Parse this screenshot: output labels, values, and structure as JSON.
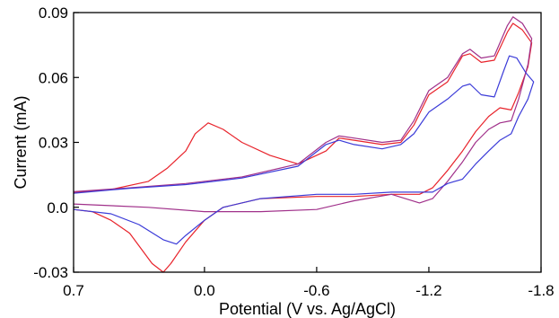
{
  "chart_data": {
    "type": "line",
    "title": "",
    "xlabel": "Potential (V vs. Ag/AgCl)",
    "ylabel": "Current (mA)",
    "xlim": [
      0.7,
      -1.8
    ],
    "ylim": [
      -0.03,
      0.09
    ],
    "x_reversed": true,
    "x_ticks": [
      {
        "value": 0.7,
        "label": "0.7"
      },
      {
        "value": 0.0,
        "label": "0.0"
      },
      {
        "value": -0.6,
        "label": "-0.6"
      },
      {
        "value": -1.2,
        "label": "-1.2"
      },
      {
        "value": -1.8,
        "label": "-1.8"
      }
    ],
    "y_ticks": [
      {
        "value": -0.03,
        "label": "-0.03"
      },
      {
        "value": 0.0,
        "label": "0.0"
      },
      {
        "value": 0.03,
        "label": "0.03"
      },
      {
        "value": 0.06,
        "label": "0.06"
      },
      {
        "value": 0.09,
        "label": "0.09"
      }
    ],
    "grid": false,
    "legend": "none",
    "series": [
      {
        "color": "#e8232b",
        "points": [
          [
            0.7,
            0.0068
          ],
          [
            0.5,
            0.0082
          ],
          [
            0.3,
            0.012
          ],
          [
            0.2,
            0.018
          ],
          [
            0.1,
            0.026
          ],
          [
            0.05,
            0.034
          ],
          [
            -0.02,
            0.039
          ],
          [
            -0.1,
            0.036
          ],
          [
            -0.2,
            0.03
          ],
          [
            -0.35,
            0.024
          ],
          [
            -0.5,
            0.02
          ],
          [
            -0.65,
            0.026
          ],
          [
            -0.72,
            0.032
          ],
          [
            -0.8,
            0.031
          ],
          [
            -0.95,
            0.029
          ],
          [
            -1.05,
            0.03
          ],
          [
            -1.12,
            0.038
          ],
          [
            -1.2,
            0.052
          ],
          [
            -1.3,
            0.058
          ],
          [
            -1.38,
            0.07
          ],
          [
            -1.42,
            0.071
          ],
          [
            -1.48,
            0.067
          ],
          [
            -1.55,
            0.068
          ],
          [
            -1.62,
            0.081
          ],
          [
            -1.65,
            0.085
          ],
          [
            -1.7,
            0.082
          ],
          [
            -1.75,
            0.076
          ],
          [
            -1.73,
            0.065
          ],
          [
            -1.68,
            0.053
          ],
          [
            -1.64,
            0.045
          ],
          [
            -1.58,
            0.046
          ],
          [
            -1.52,
            0.042
          ],
          [
            -1.45,
            0.035
          ],
          [
            -1.38,
            0.026
          ],
          [
            -1.3,
            0.017
          ],
          [
            -1.22,
            0.009
          ],
          [
            -1.15,
            0.006
          ],
          [
            -1.0,
            0.006
          ],
          [
            -0.8,
            0.005
          ],
          [
            -0.6,
            0.005
          ],
          [
            -0.3,
            0.004
          ],
          [
            -0.1,
            0.0
          ],
          [
            0.0,
            -0.006
          ],
          [
            0.1,
            -0.016
          ],
          [
            0.18,
            -0.026
          ],
          [
            0.22,
            -0.03
          ],
          [
            0.28,
            -0.026
          ],
          [
            0.4,
            -0.012
          ],
          [
            0.5,
            -0.006
          ],
          [
            0.6,
            -0.002
          ],
          [
            0.7,
            -0.001
          ]
        ]
      },
      {
        "color": "#a0308a",
        "points": [
          [
            0.7,
            0.0072
          ],
          [
            0.4,
            0.009
          ],
          [
            0.1,
            0.011
          ],
          [
            -0.2,
            0.014
          ],
          [
            -0.5,
            0.02
          ],
          [
            -0.65,
            0.03
          ],
          [
            -0.72,
            0.033
          ],
          [
            -0.8,
            0.032
          ],
          [
            -0.95,
            0.03
          ],
          [
            -1.05,
            0.031
          ],
          [
            -1.12,
            0.04
          ],
          [
            -1.2,
            0.054
          ],
          [
            -1.3,
            0.06
          ],
          [
            -1.38,
            0.071
          ],
          [
            -1.42,
            0.073
          ],
          [
            -1.48,
            0.069
          ],
          [
            -1.55,
            0.07
          ],
          [
            -1.62,
            0.084
          ],
          [
            -1.65,
            0.088
          ],
          [
            -1.7,
            0.085
          ],
          [
            -1.75,
            0.078
          ],
          [
            -1.73,
            0.066
          ],
          [
            -1.68,
            0.05
          ],
          [
            -1.64,
            0.04
          ],
          [
            -1.58,
            0.039
          ],
          [
            -1.52,
            0.036
          ],
          [
            -1.45,
            0.03
          ],
          [
            -1.38,
            0.021
          ],
          [
            -1.3,
            0.012
          ],
          [
            -1.22,
            0.004
          ],
          [
            -1.15,
            0.002
          ],
          [
            -1.0,
            0.006
          ],
          [
            -0.8,
            0.003
          ],
          [
            -0.6,
            -0.001
          ],
          [
            -0.3,
            -0.002
          ],
          [
            0.0,
            -0.002
          ],
          [
            0.3,
            0.0
          ],
          [
            0.7,
            0.0015
          ]
        ]
      },
      {
        "color": "#3b3bd8",
        "points": [
          [
            0.7,
            0.0065
          ],
          [
            0.4,
            0.0088
          ],
          [
            0.1,
            0.0105
          ],
          [
            -0.2,
            0.0135
          ],
          [
            -0.5,
            0.019
          ],
          [
            -0.65,
            0.029
          ],
          [
            -0.72,
            0.031
          ],
          [
            -0.8,
            0.029
          ],
          [
            -0.95,
            0.027
          ],
          [
            -1.05,
            0.029
          ],
          [
            -1.12,
            0.034
          ],
          [
            -1.2,
            0.044
          ],
          [
            -1.3,
            0.05
          ],
          [
            -1.38,
            0.056
          ],
          [
            -1.42,
            0.057
          ],
          [
            -1.48,
            0.052
          ],
          [
            -1.55,
            0.051
          ],
          [
            -1.6,
            0.063
          ],
          [
            -1.63,
            0.07
          ],
          [
            -1.67,
            0.069
          ],
          [
            -1.72,
            0.062
          ],
          [
            -1.76,
            0.058
          ],
          [
            -1.73,
            0.05
          ],
          [
            -1.68,
            0.042
          ],
          [
            -1.64,
            0.034
          ],
          [
            -1.58,
            0.031
          ],
          [
            -1.52,
            0.026
          ],
          [
            -1.45,
            0.02
          ],
          [
            -1.38,
            0.013
          ],
          [
            -1.3,
            0.011
          ],
          [
            -1.22,
            0.007
          ],
          [
            -1.15,
            0.007
          ],
          [
            -1.0,
            0.007
          ],
          [
            -0.8,
            0.006
          ],
          [
            -0.6,
            0.006
          ],
          [
            -0.3,
            0.004
          ],
          [
            -0.1,
            0.0
          ],
          [
            0.0,
            -0.006
          ],
          [
            0.1,
            -0.013
          ],
          [
            0.15,
            -0.017
          ],
          [
            0.22,
            -0.015
          ],
          [
            0.35,
            -0.008
          ],
          [
            0.5,
            -0.003
          ],
          [
            0.7,
            -0.001
          ]
        ]
      }
    ]
  }
}
